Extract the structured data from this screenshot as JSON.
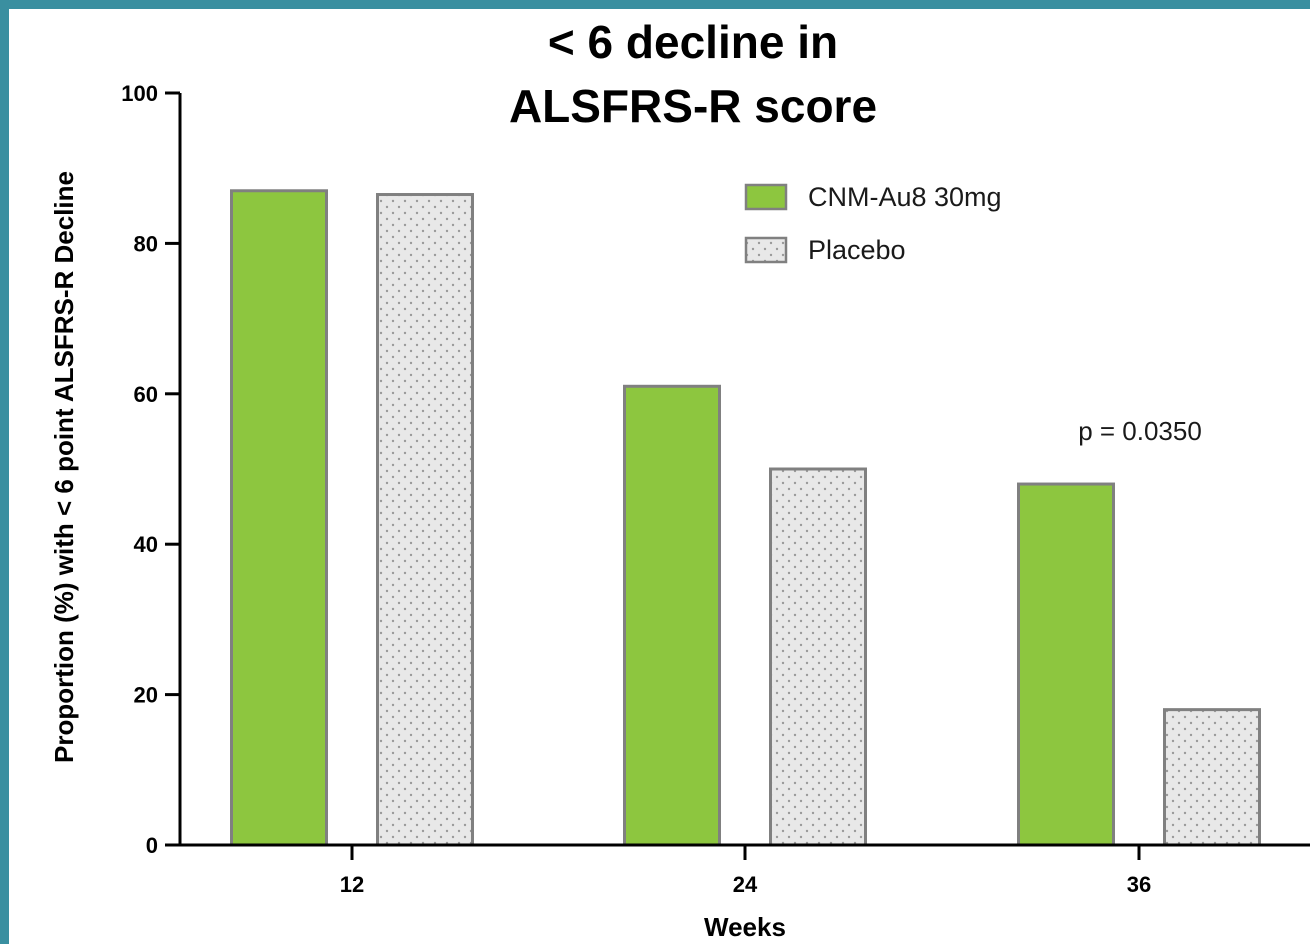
{
  "chart_data": {
    "type": "bar",
    "title_lines": [
      "< 6 decline in",
      "ALSFRS-R score"
    ],
    "xlabel": "Weeks",
    "ylabel": "Proportion (%) with < 6 point ALSFRS-R Decline",
    "categories": [
      "12",
      "24",
      "36"
    ],
    "series": [
      {
        "name": "CNM-Au8 30mg",
        "values": [
          87,
          61,
          48
        ],
        "color": "#8dc63f",
        "pattern": "solid"
      },
      {
        "name": "Placebo",
        "values": [
          86.5,
          50,
          18
        ],
        "color": "#e8e8e8",
        "pattern": "dots"
      }
    ],
    "ylim": [
      0,
      100
    ],
    "yticks": [
      0,
      20,
      40,
      60,
      80,
      100
    ],
    "grid": false,
    "legend_position": "top-right",
    "annotations": [
      {
        "text": "p =  0.0350",
        "category": "36"
      }
    ],
    "colors": {
      "frame": "#3a8fa0",
      "bar_outline": "#808080"
    }
  }
}
